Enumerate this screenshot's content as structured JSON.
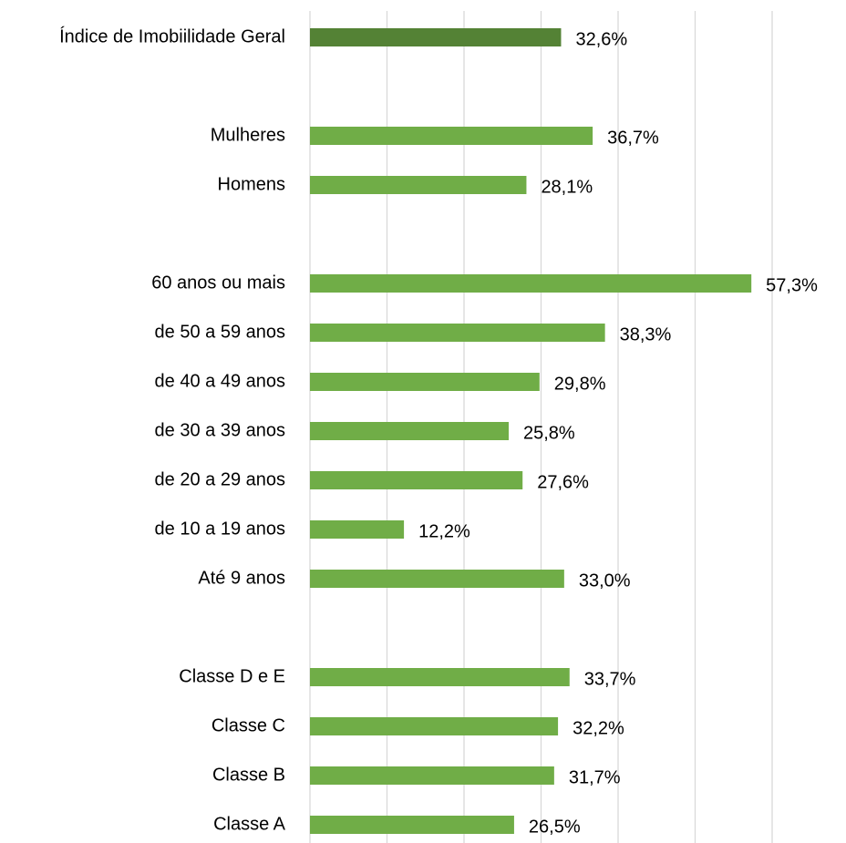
{
  "chart_data": {
    "type": "barh",
    "categories": [
      "Índice de Imobiilidade Geral",
      null,
      "Mulheres",
      "Homens",
      null,
      "60 anos ou mais",
      "de 50 a 59 anos",
      "de 40 a 49 anos",
      "de 30 a 39 anos",
      "de 20 a 29 anos",
      "de 10 a 19 anos",
      "Até 9 anos",
      null,
      "Classe D e E",
      "Classe C",
      "Classe B",
      "Classe A"
    ],
    "values": [
      32.6,
      null,
      36.7,
      28.1,
      null,
      57.3,
      38.3,
      29.8,
      25.8,
      27.6,
      12.2,
      33.0,
      null,
      33.7,
      32.2,
      31.7,
      26.5
    ],
    "value_labels": [
      "32,6%",
      null,
      "36,7%",
      "28,1%",
      null,
      "57,3%",
      "38,3%",
      "29,8%",
      "25,8%",
      "27,6%",
      "12,2%",
      "33,0%",
      null,
      "33,7%",
      "32,2%",
      "31,7%",
      "26,5%"
    ],
    "colors": [
      "#548235",
      null,
      "#70ad47",
      "#70ad47",
      null,
      "#70ad47",
      "#70ad47",
      "#70ad47",
      "#70ad47",
      "#70ad47",
      "#70ad47",
      "#70ad47",
      null,
      "#70ad47",
      "#70ad47",
      "#70ad47",
      "#70ad47"
    ],
    "xlim": [
      0,
      60
    ],
    "xticks": [
      0,
      10,
      20,
      30,
      40,
      50,
      60
    ],
    "grid": true
  }
}
